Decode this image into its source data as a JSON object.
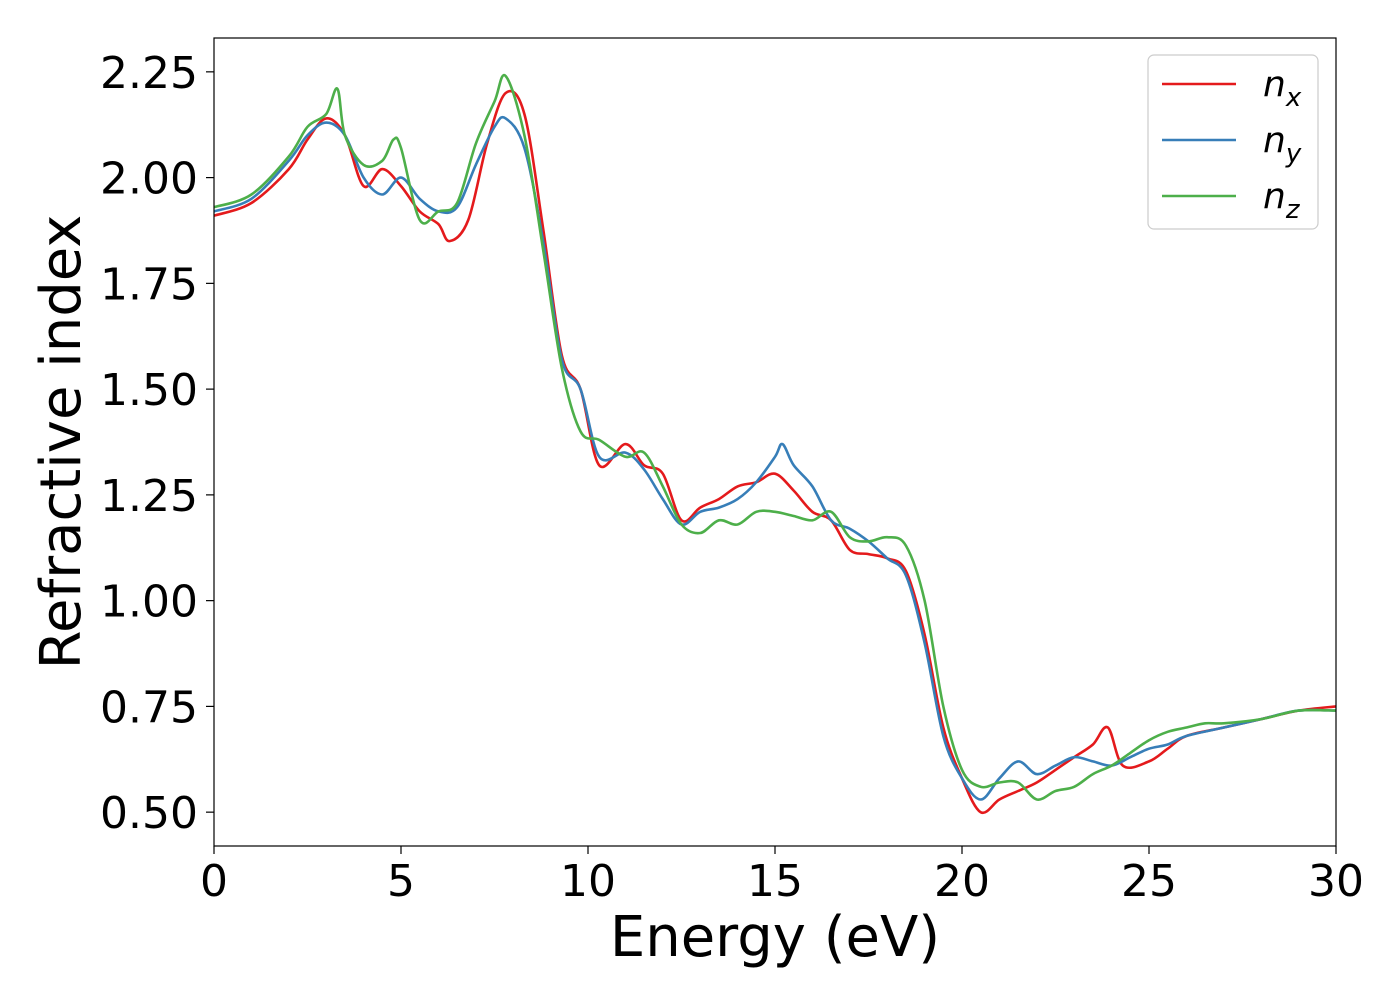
{
  "chart_data": {
    "type": "line",
    "title": "",
    "xlabel": "Energy (eV)",
    "ylabel": "Refractive index",
    "xlim": [
      0,
      30
    ],
    "ylim": [
      0.42,
      2.33
    ],
    "xticks": [
      0,
      5,
      10,
      15,
      20,
      25,
      30
    ],
    "xtick_labels": [
      "0",
      "5",
      "10",
      "15",
      "20",
      "25",
      "30"
    ],
    "yticks": [
      0.5,
      0.75,
      1.0,
      1.25,
      1.5,
      1.75,
      2.0,
      2.25
    ],
    "ytick_labels": [
      "0.50",
      "0.75",
      "1.00",
      "1.25",
      "1.50",
      "1.75",
      "2.00",
      "2.25"
    ],
    "grid": false,
    "legend_position": "top-right",
    "series": [
      {
        "name": "n_x",
        "legend_base": "n",
        "legend_sub": "x",
        "color": "#e41a1c",
        "x": [
          0,
          1,
          2,
          2.5,
          3,
          3.5,
          4,
          4.5,
          5,
          5.5,
          6,
          6.3,
          6.8,
          7.3,
          7.8,
          8.3,
          8.8,
          9.3,
          9.8,
          10.3,
          11,
          11.5,
          12,
          12.5,
          13,
          13.5,
          14,
          14.5,
          15,
          15.5,
          16,
          16.5,
          17,
          17.5,
          18,
          18.5,
          19,
          19.5,
          20,
          20.5,
          21,
          21.5,
          22,
          22.5,
          23,
          23.5,
          23.9,
          24.3,
          25,
          25.5,
          26,
          27,
          28,
          29,
          30
        ],
        "y": [
          1.91,
          1.94,
          2.02,
          2.09,
          2.14,
          2.1,
          1.98,
          2.02,
          1.98,
          1.92,
          1.89,
          1.85,
          1.9,
          2.08,
          2.2,
          2.15,
          1.88,
          1.58,
          1.5,
          1.32,
          1.37,
          1.32,
          1.3,
          1.19,
          1.22,
          1.24,
          1.27,
          1.28,
          1.3,
          1.26,
          1.21,
          1.19,
          1.12,
          1.11,
          1.1,
          1.07,
          0.92,
          0.7,
          0.58,
          0.5,
          0.53,
          0.55,
          0.57,
          0.6,
          0.63,
          0.66,
          0.7,
          0.61,
          0.62,
          0.65,
          0.68,
          0.7,
          0.72,
          0.74,
          0.75
        ]
      },
      {
        "name": "n_y",
        "legend_base": "n",
        "legend_sub": "y",
        "color": "#377eb8",
        "x": [
          0,
          1,
          2,
          2.5,
          3,
          3.5,
          4,
          4.5,
          5,
          5.5,
          6,
          6.5,
          7,
          7.5,
          7.8,
          8.3,
          8.8,
          9.3,
          9.8,
          10.3,
          11,
          11.5,
          12,
          12.5,
          13,
          13.5,
          14,
          14.5,
          15,
          15.2,
          15.5,
          16,
          16.5,
          17,
          17.5,
          18,
          18.5,
          19,
          19.5,
          20,
          20.5,
          21,
          21.5,
          22,
          22.5,
          23,
          23.5,
          24,
          24.5,
          25,
          25.5,
          26,
          27,
          28,
          29,
          30
        ],
        "y": [
          1.92,
          1.95,
          2.04,
          2.1,
          2.13,
          2.1,
          2.0,
          1.96,
          2.0,
          1.95,
          1.92,
          1.93,
          2.03,
          2.12,
          2.14,
          2.07,
          1.85,
          1.57,
          1.5,
          1.34,
          1.35,
          1.31,
          1.24,
          1.18,
          1.21,
          1.22,
          1.24,
          1.28,
          1.34,
          1.37,
          1.32,
          1.27,
          1.19,
          1.17,
          1.14,
          1.1,
          1.06,
          0.9,
          0.68,
          0.58,
          0.53,
          0.58,
          0.62,
          0.59,
          0.61,
          0.63,
          0.62,
          0.61,
          0.63,
          0.65,
          0.66,
          0.68,
          0.7,
          0.72,
          0.74,
          0.74
        ]
      },
      {
        "name": "n_z",
        "legend_base": "n",
        "legend_sub": "z",
        "color": "#4daf4a",
        "x": [
          0,
          1,
          2,
          2.5,
          3,
          3.3,
          3.5,
          4,
          4.5,
          4.8,
          5,
          5.5,
          6,
          6.5,
          7,
          7.5,
          7.8,
          8.3,
          8.8,
          9.3,
          9.8,
          10.3,
          11,
          11.5,
          12,
          12.5,
          13,
          13.5,
          14,
          14.5,
          15,
          15.5,
          16,
          16.5,
          17,
          17.5,
          18,
          18.5,
          19,
          19.5,
          20,
          20.5,
          21,
          21.5,
          22,
          22.5,
          23,
          23.5,
          24,
          24.5,
          25,
          25.5,
          26,
          26.5,
          27,
          28,
          29,
          30
        ],
        "y": [
          1.93,
          1.96,
          2.05,
          2.12,
          2.15,
          2.21,
          2.1,
          2.03,
          2.04,
          2.09,
          2.07,
          1.9,
          1.92,
          1.94,
          2.08,
          2.18,
          2.24,
          2.1,
          1.83,
          1.55,
          1.4,
          1.38,
          1.34,
          1.35,
          1.27,
          1.18,
          1.16,
          1.19,
          1.18,
          1.21,
          1.21,
          1.2,
          1.19,
          1.21,
          1.15,
          1.14,
          1.15,
          1.13,
          1.0,
          0.75,
          0.6,
          0.56,
          0.57,
          0.57,
          0.53,
          0.55,
          0.56,
          0.59,
          0.61,
          0.64,
          0.67,
          0.69,
          0.7,
          0.71,
          0.71,
          0.72,
          0.74,
          0.74
        ]
      }
    ]
  }
}
